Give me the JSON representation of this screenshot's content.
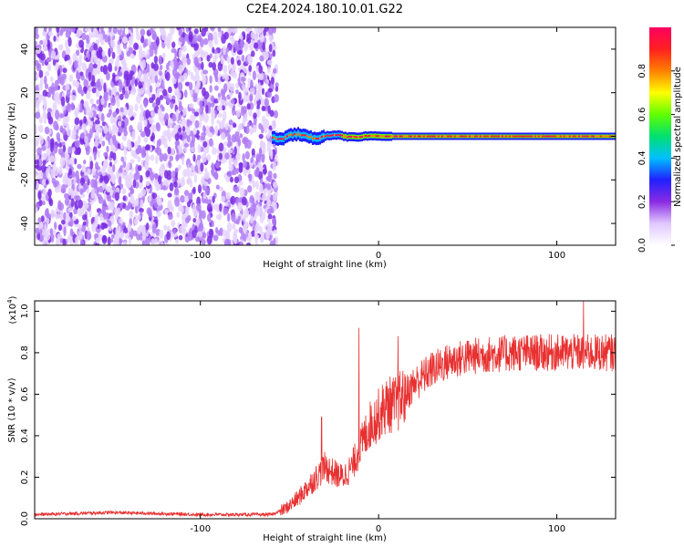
{
  "title": "C2E4.2024.180.10.01.G22",
  "colors": {
    "snr_line": "#e83030",
    "axis": "#000000"
  },
  "chart_data": [
    {
      "type": "heatmap",
      "name": "spectrogram",
      "xlabel": "Height of straight line (km)",
      "ylabel": "Frequency (Hz)",
      "xlim": [
        -193,
        133
      ],
      "ylim": [
        -50,
        50
      ],
      "xticks": [
        -100,
        0,
        100
      ],
      "xtick_labels": [
        "-100",
        "0",
        "100"
      ],
      "yticks": [
        -40,
        -20,
        0,
        20,
        40
      ],
      "ytick_labels": [
        "-40",
        "-20",
        "0",
        "20",
        "40"
      ],
      "noise_region_x": [
        -193,
        -57
      ],
      "signal_frequency_hz": 0,
      "colorbar": {
        "label": "Normalized spectral amplitude",
        "range": [
          0,
          1
        ],
        "ticks": [
          0.0,
          0.2,
          0.4,
          0.6,
          0.8
        ],
        "tick_labels": [
          "0.0",
          "0.2",
          "0.4",
          "0.6",
          "0.8"
        ],
        "colormap": [
          "#ffffff",
          "#e0c8ff",
          "#8a2be2",
          "#2020ff",
          "#00c0ff",
          "#00e070",
          "#60ff00",
          "#ffff00",
          "#ff8000",
          "#ff2020",
          "#ff0060"
        ]
      }
    },
    {
      "type": "line",
      "name": "snr",
      "xlabel": "Height of straight line (km)",
      "ylabel": "SNR (10 * v/v)",
      "multiplier_label": "(x10",
      "multiplier_exp": "4",
      "multiplier_close": ")",
      "xlim": [
        -193,
        133
      ],
      "ylim": [
        0,
        1.05
      ],
      "xticks": [
        -100,
        0,
        100
      ],
      "xtick_labels": [
        "-100",
        "0",
        "100"
      ],
      "yticks": [
        0.0,
        0.2,
        0.4,
        0.6,
        0.8,
        1.0
      ],
      "ytick_labels": [
        "0.0",
        "0.2",
        "0.4",
        "0.6",
        "0.8",
        "1.0"
      ],
      "envelope": {
        "x": [
          -193,
          -150,
          -100,
          -60,
          -52,
          -45,
          -40,
          -35,
          -30,
          -25,
          -20,
          -15,
          -10,
          -5,
          0,
          5,
          10,
          15,
          20,
          30,
          40,
          50,
          60,
          80,
          100,
          120,
          133
        ],
        "y": [
          0.02,
          0.03,
          0.02,
          0.02,
          0.05,
          0.1,
          0.15,
          0.2,
          0.25,
          0.22,
          0.2,
          0.25,
          0.35,
          0.45,
          0.5,
          0.55,
          0.55,
          0.6,
          0.65,
          0.72,
          0.76,
          0.78,
          0.79,
          0.8,
          0.8,
          0.8,
          0.8
        ]
      },
      "peaks": [
        {
          "x": -32,
          "y": 0.49
        },
        {
          "x": -11,
          "y": 0.92
        },
        {
          "x": 11,
          "y": 0.88
        },
        {
          "x": 115,
          "y": 1.05
        }
      ]
    }
  ]
}
